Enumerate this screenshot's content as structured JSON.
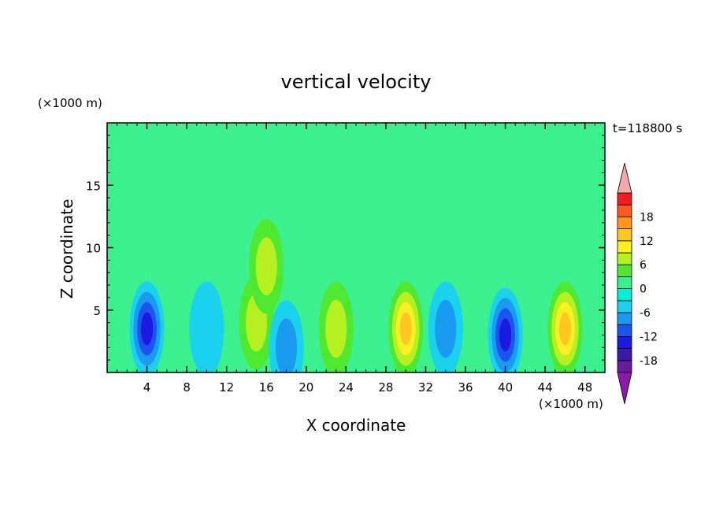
{
  "chart_data": {
    "type": "heatmap",
    "title": "vertical velocity",
    "time_label": "t=118800 s",
    "xlabel": "X coordinate",
    "ylabel": "Z coordinate",
    "x_unit_label": "(×1000 m)",
    "y_unit_label": "(×1000 m)",
    "xlim": [
      0,
      50
    ],
    "ylim": [
      0,
      20
    ],
    "x_ticks": [
      4,
      8,
      12,
      16,
      20,
      24,
      28,
      32,
      36,
      40,
      44,
      48
    ],
    "y_ticks": [
      5,
      10,
      15
    ],
    "colorbar": {
      "levels": [
        -21,
        -18,
        -15,
        -12,
        -9,
        -6,
        -3,
        0,
        3,
        6,
        9,
        12,
        15,
        18,
        21
      ],
      "labeled_ticks": [
        18,
        12,
        6,
        0,
        -6,
        -12,
        -18
      ],
      "colors": [
        "#6a1a9a",
        "#3a1aa6",
        "#1a1ae0",
        "#1a55f0",
        "#1a9af0",
        "#1ad2ee",
        "#00f0d8",
        "#3cf090",
        "#4fe830",
        "#b6f020",
        "#f8f020",
        "#ffc820",
        "#ff961e",
        "#ff5a1e",
        "#f01e1e"
      ],
      "over_color": "#f4a8a8",
      "under_color": "#8a1aa8"
    },
    "features": [
      {
        "x": 4,
        "z": 3.5,
        "w": -12
      },
      {
        "x": 10,
        "z": 3.5,
        "w": -5
      },
      {
        "x": 15,
        "z": 4,
        "w": 8
      },
      {
        "x": 16,
        "z": 8.5,
        "w": 6
      },
      {
        "x": 18,
        "z": 2,
        "w": -6
      },
      {
        "x": 23,
        "z": 3.5,
        "w": 6
      },
      {
        "x": 30,
        "z": 3.5,
        "w": 13
      },
      {
        "x": 34,
        "z": 3.5,
        "w": -8
      },
      {
        "x": 40,
        "z": 3,
        "w": -14
      },
      {
        "x": 46,
        "z": 3.5,
        "w": 13
      }
    ]
  }
}
